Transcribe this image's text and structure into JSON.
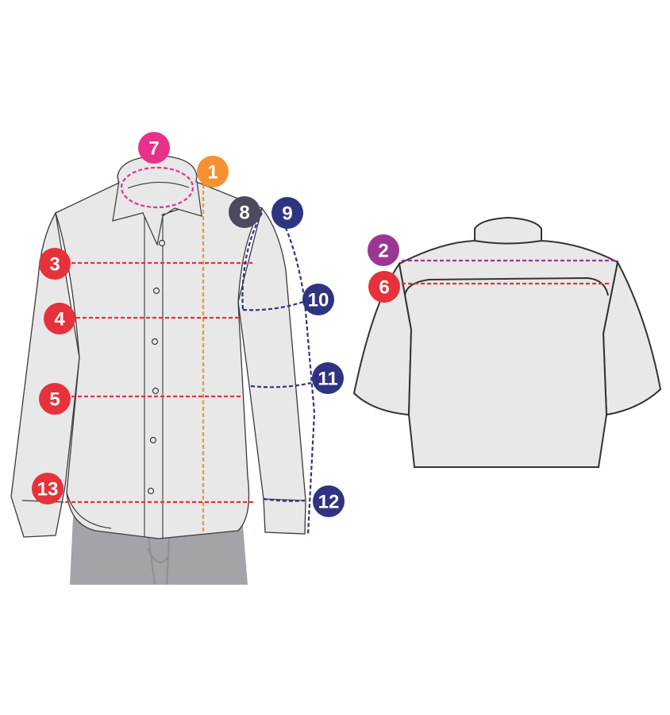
{
  "badges": {
    "b1": "1",
    "b2": "2",
    "b3": "3",
    "b4": "4",
    "b5": "5",
    "b6": "6",
    "b7": "7",
    "b8": "8",
    "b9": "9",
    "b10": "10",
    "b11": "11",
    "b12": "12",
    "b13": "13"
  },
  "colors": {
    "red": "#e5323b",
    "orange": "#f5922f",
    "navy": "#2f3382",
    "magenta": "#e7318a",
    "purple": "#9c3593",
    "charcoal": "#4b4a5e",
    "shirt_fill": "#e8e8e9",
    "shirt_stroke": "#3a3a3a",
    "pants": "#a3a4a7"
  }
}
